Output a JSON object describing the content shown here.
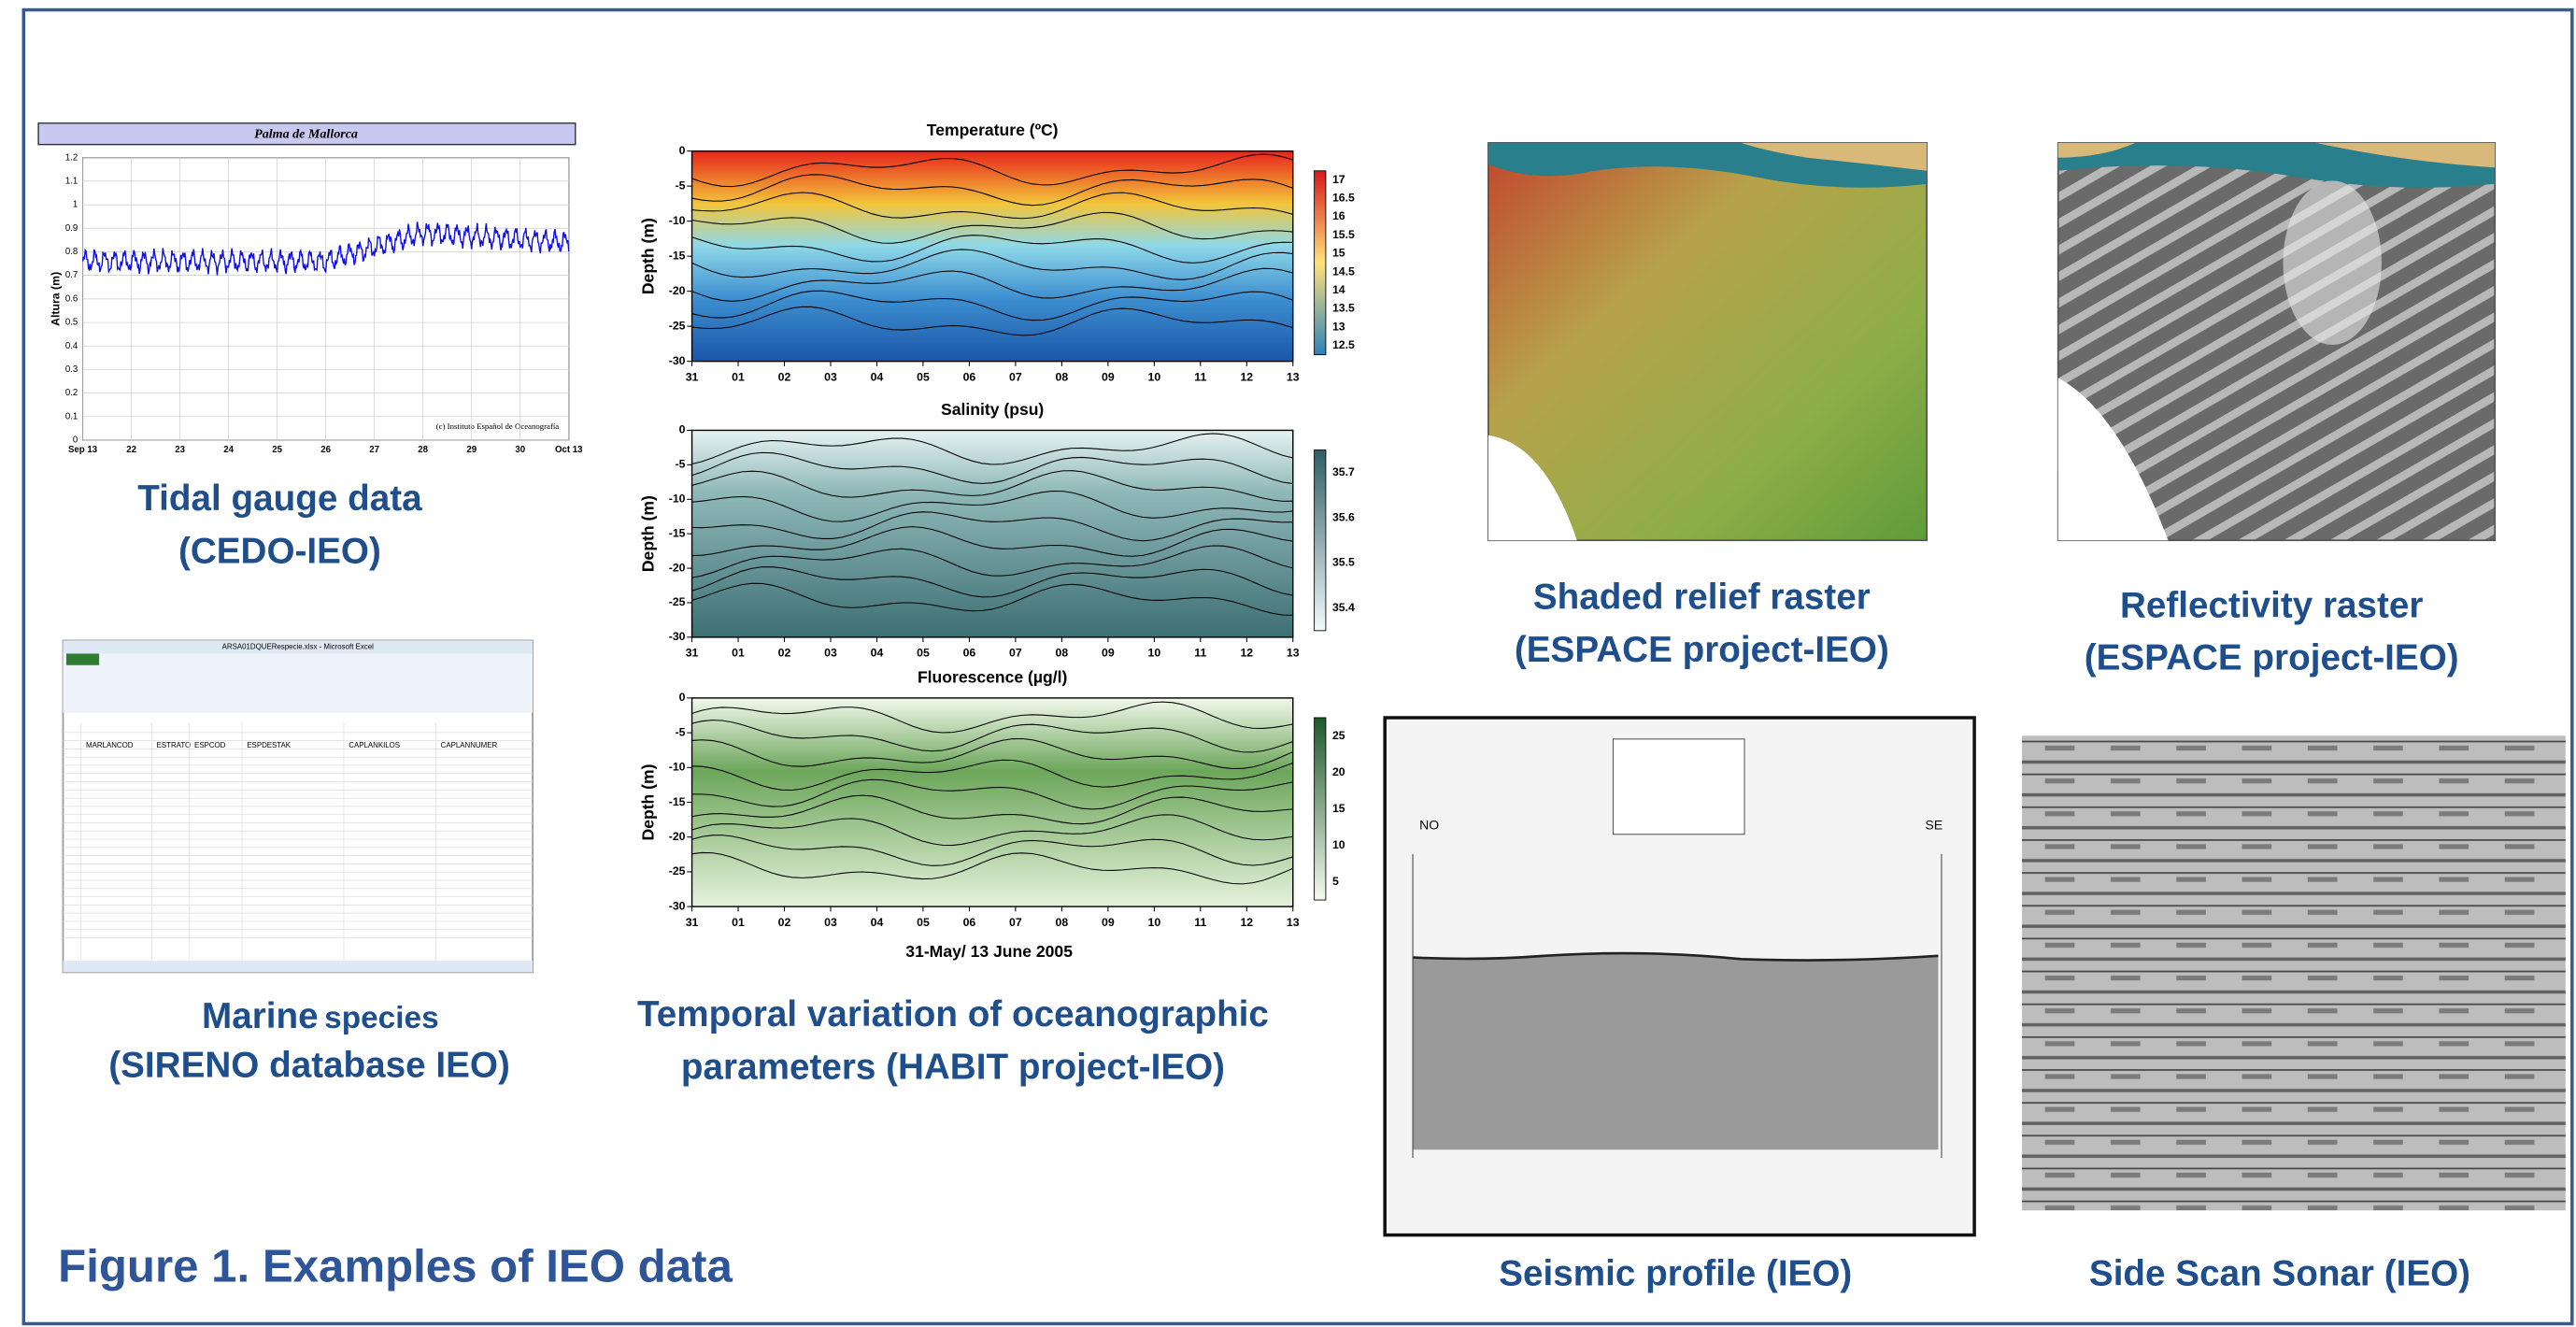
{
  "title": "Figure 1. Examples of IEO data",
  "tidal": {
    "chart_title": "Palma de Mallorca",
    "y_label": "Altura (m)",
    "yticks": [
      "0",
      "0.1",
      "0.2",
      "0.3",
      "0.4",
      "0.5",
      "0.6",
      "0.7",
      "0.8",
      "0.9",
      "1",
      "1.1",
      "1.2"
    ],
    "xticks": [
      "Sep 13",
      "22",
      "23",
      "24",
      "25",
      "26",
      "27",
      "28",
      "29",
      "30",
      "Oct 13"
    ],
    "credit": "(c) Instituto Español de Oceanografía",
    "caption": [
      "Tidal gauge data",
      "(CEDO-IEO)"
    ]
  },
  "species": {
    "window_title": "ARSA01DQUERespecie.xlsx - Microsoft Excel",
    "header": [
      "MARLANCOD",
      "ESTRATO",
      "ESPCOD",
      "ESPDESTAK",
      "CAPLANKILOS",
      "CAPLANNUMER"
    ],
    "caption": [
      "Marine",
      "species",
      "(SIRENO database IEO)"
    ]
  },
  "oceanographic": {
    "plots": [
      {
        "title": "Temperature (ºC)",
        "y_label": "Depth (m)",
        "yticks": [
          "0",
          "-5",
          "-10",
          "-15",
          "-20",
          "-25",
          "-30"
        ],
        "xticks": [
          "31",
          "01",
          "02",
          "03",
          "04",
          "05",
          "06",
          "07",
          "08",
          "09",
          "10",
          "11",
          "12",
          "13"
        ],
        "colorbar": [
          "17",
          "16.5",
          "16",
          "15.5",
          "15",
          "14.5",
          "14",
          "13.5",
          "13",
          "12.5"
        ]
      },
      {
        "title": "Salinity (psu)",
        "y_label": "Depth (m)",
        "yticks": [
          "0",
          "-5",
          "-10",
          "-15",
          "-20",
          "-25",
          "-30"
        ],
        "xticks": [
          "31",
          "01",
          "02",
          "03",
          "04",
          "05",
          "06",
          "07",
          "08",
          "09",
          "10",
          "11",
          "12",
          "13"
        ],
        "colorbar": [
          "35.7",
          "35.6",
          "35.5",
          "35.4"
        ]
      },
      {
        "title": "Fluorescence (µg/l)",
        "y_label": "Depth (m)",
        "yticks": [
          "0",
          "-5",
          "-10",
          "-15",
          "-20",
          "-25",
          "-30"
        ],
        "xticks": [
          "31",
          "01",
          "02",
          "03",
          "04",
          "05",
          "06",
          "07",
          "08",
          "09",
          "10",
          "11",
          "12",
          "13"
        ],
        "colorbar": [
          "25",
          "20",
          "15",
          "10",
          "5"
        ]
      }
    ],
    "x_label": "31-May/ 13 June 2005",
    "caption": [
      "Temporal variation of oceanographic",
      "parameters  (HABIT project-IEO)"
    ]
  },
  "relief": {
    "caption": [
      "Shaded relief raster",
      "(ESPACE project-IEO)"
    ]
  },
  "reflectivity": {
    "caption": [
      "Reflectivity  raster",
      "(ESPACE project-IEO)"
    ]
  },
  "seismic": {
    "left_label": "NO",
    "right_label": "SE",
    "caption": "Seismic profile  (IEO)"
  },
  "sonar": {
    "caption": "Side Scan Sonar (IEO)"
  }
}
